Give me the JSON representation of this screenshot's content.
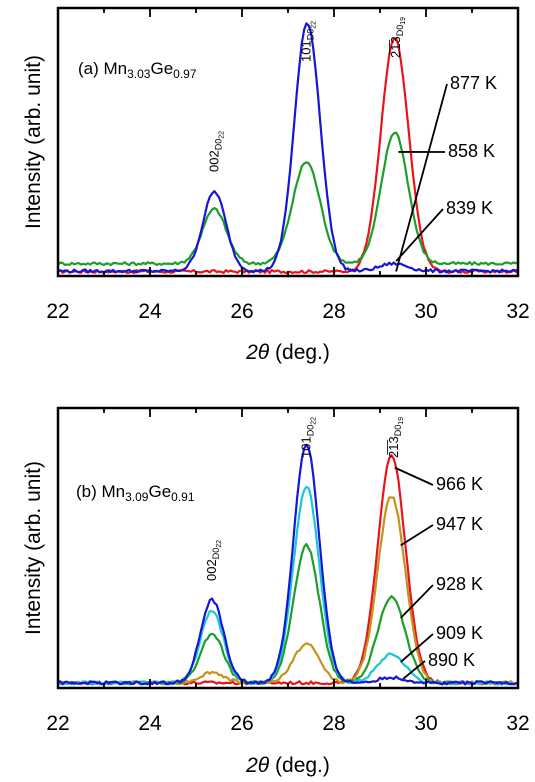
{
  "chart_data": [
    {
      "type": "line",
      "panel_label": "(a) ",
      "sample": {
        "base1": "Mn",
        "sub1": "3.03",
        "base2": "Ge",
        "sub2": "0.97"
      },
      "xlabel": {
        "symbol": "2θ",
        "unit": " (deg.)"
      },
      "ylabel": "Intensity (arb. unit)",
      "xlim": [
        22,
        32
      ],
      "xticks": [
        "22",
        "24",
        "26",
        "28",
        "30",
        "32"
      ],
      "ylim": [
        0,
        1.08
      ],
      "grid": false,
      "legend": "none",
      "peak_labels": [
        {
          "x": 25.4,
          "base": "002",
          "sub": "D0",
          "sub2": "22"
        },
        {
          "x": 27.4,
          "base": "101",
          "sub": "D0",
          "sub2": "22"
        },
        {
          "x": 29.35,
          "base": "2̅1̅3",
          "sub": "D0",
          "sub2": "19"
        }
      ],
      "series": [
        {
          "label": "877 K",
          "color": "#e8141b",
          "baseline": 0.018,
          "peaks": [
            [
              29.32,
              0.94,
              0.3
            ]
          ],
          "label_at": [
            29.35,
            0.018
          ]
        },
        {
          "label": "858 K",
          "color": "#1d9e29",
          "baseline": 0.05,
          "peaks": [
            [
              25.4,
              0.22,
              0.26
            ],
            [
              27.4,
              0.41,
              0.3
            ],
            [
              29.32,
              0.53,
              0.29
            ]
          ],
          "label_at": [
            29.4,
            0.5
          ]
        },
        {
          "label": "839 K",
          "color": "#1616d8",
          "baseline": 0.02,
          "peaks": [
            [
              25.4,
              0.32,
              0.25
            ],
            [
              27.42,
              1.0,
              0.28
            ],
            [
              29.3,
              0.03,
              0.3
            ]
          ],
          "label_at": [
            29.35,
            0.06
          ]
        }
      ]
    },
    {
      "type": "line",
      "panel_label": "(b) ",
      "sample": {
        "base1": "Mn",
        "sub1": "3.09",
        "base2": "Ge",
        "sub2": "0.91"
      },
      "xlabel": {
        "symbol": "2θ",
        "unit": " (deg.)"
      },
      "ylabel": "Intensity (arb. unit)",
      "xlim": [
        22,
        32
      ],
      "xticks": [
        "22",
        "24",
        "26",
        "28",
        "30",
        "32"
      ],
      "ylim": [
        0,
        1.08
      ],
      "grid": false,
      "legend": "none",
      "peak_labels": [
        {
          "x": 25.35,
          "base": "002",
          "sub": "D0",
          "sub2": "22"
        },
        {
          "x": 27.4,
          "base": "101",
          "sub": "D0",
          "sub2": "22"
        },
        {
          "x": 29.3,
          "base": "2̅1̅3",
          "sub": "D0",
          "sub2": "19"
        }
      ],
      "series": [
        {
          "label": "966 K",
          "color": "#e8141b",
          "baseline": 0.02,
          "peaks": [
            [
              29.25,
              0.88,
              0.3
            ]
          ],
          "label_at": [
            29.32,
            0.85
          ]
        },
        {
          "label": "947 K",
          "color": "#c8901c",
          "baseline": 0.02,
          "peaks": [
            [
              25.35,
              0.04,
              0.25
            ],
            [
              27.4,
              0.15,
              0.28
            ],
            [
              29.25,
              0.72,
              0.3
            ]
          ],
          "label_at": [
            29.45,
            0.55
          ]
        },
        {
          "label": "928 K",
          "color": "#1d9e29",
          "baseline": 0.02,
          "peaks": [
            [
              25.35,
              0.19,
              0.25
            ],
            [
              27.4,
              0.53,
              0.28
            ],
            [
              29.25,
              0.33,
              0.3
            ]
          ],
          "label_at": [
            29.45,
            0.27
          ]
        },
        {
          "label": "909 K",
          "color": "#1bc6d4",
          "baseline": 0.02,
          "peaks": [
            [
              25.35,
              0.28,
              0.25
            ],
            [
              27.4,
              0.76,
              0.28
            ],
            [
              29.25,
              0.11,
              0.3
            ]
          ],
          "label_at": [
            29.45,
            0.1
          ]
        },
        {
          "label": "890 K",
          "color": "#1616d8",
          "baseline": 0.02,
          "peaks": [
            [
              25.35,
              0.32,
              0.25
            ],
            [
              27.4,
              0.92,
              0.28
            ],
            [
              29.25,
              0.02,
              0.3
            ]
          ],
          "label_at": [
            29.5,
            0.035
          ]
        }
      ]
    }
  ]
}
